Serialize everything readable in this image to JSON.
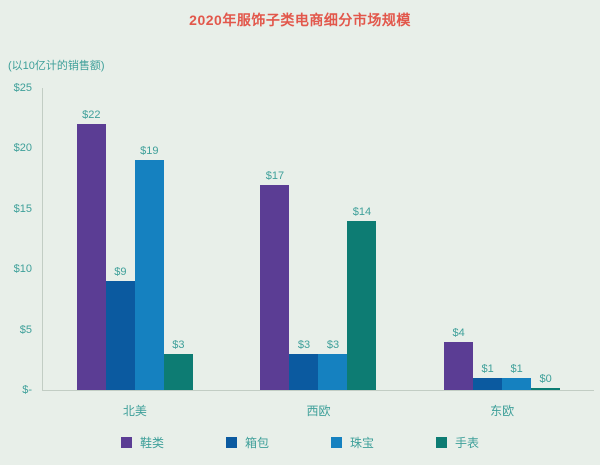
{
  "chart_data": {
    "type": "bar",
    "title": "2020年服饰子类电商细分市场规模",
    "ylabel": "(以10亿计的销售额)",
    "categories": [
      "北美",
      "西欧",
      "东欧"
    ],
    "series": [
      {
        "name": "鞋类",
        "color": "#5b3d94",
        "values": [
          22,
          17,
          4
        ],
        "labels": [
          "$22",
          "$17",
          "$4"
        ]
      },
      {
        "name": "箱包",
        "color": "#0b5aa0",
        "values": [
          9,
          3,
          1
        ],
        "labels": [
          "$9",
          "$3",
          "$1"
        ]
      },
      {
        "name": "珠宝",
        "color": "#1581c0",
        "values": [
          19,
          3,
          1
        ],
        "labels": [
          "$19",
          "$3",
          "$1"
        ]
      },
      {
        "name": "手表",
        "color": "#0d7c73",
        "values": [
          3,
          14,
          0
        ],
        "labels": [
          "$3",
          "$14",
          "$0"
        ]
      }
    ],
    "ylim": [
      0,
      25
    ],
    "yticks": [
      {
        "value": 0,
        "label": "$-"
      },
      {
        "value": 5,
        "label": "$5"
      },
      {
        "value": 10,
        "label": "$10"
      },
      {
        "value": 15,
        "label": "$15"
      },
      {
        "value": 20,
        "label": "$20"
      },
      {
        "value": 25,
        "label": "$25"
      }
    ],
    "grid": false,
    "legend_position": "bottom"
  },
  "colors": {
    "background": "#e8efe9",
    "title": "#e2574b",
    "text": "#3fa09a",
    "axis": "#c2cdc4"
  }
}
